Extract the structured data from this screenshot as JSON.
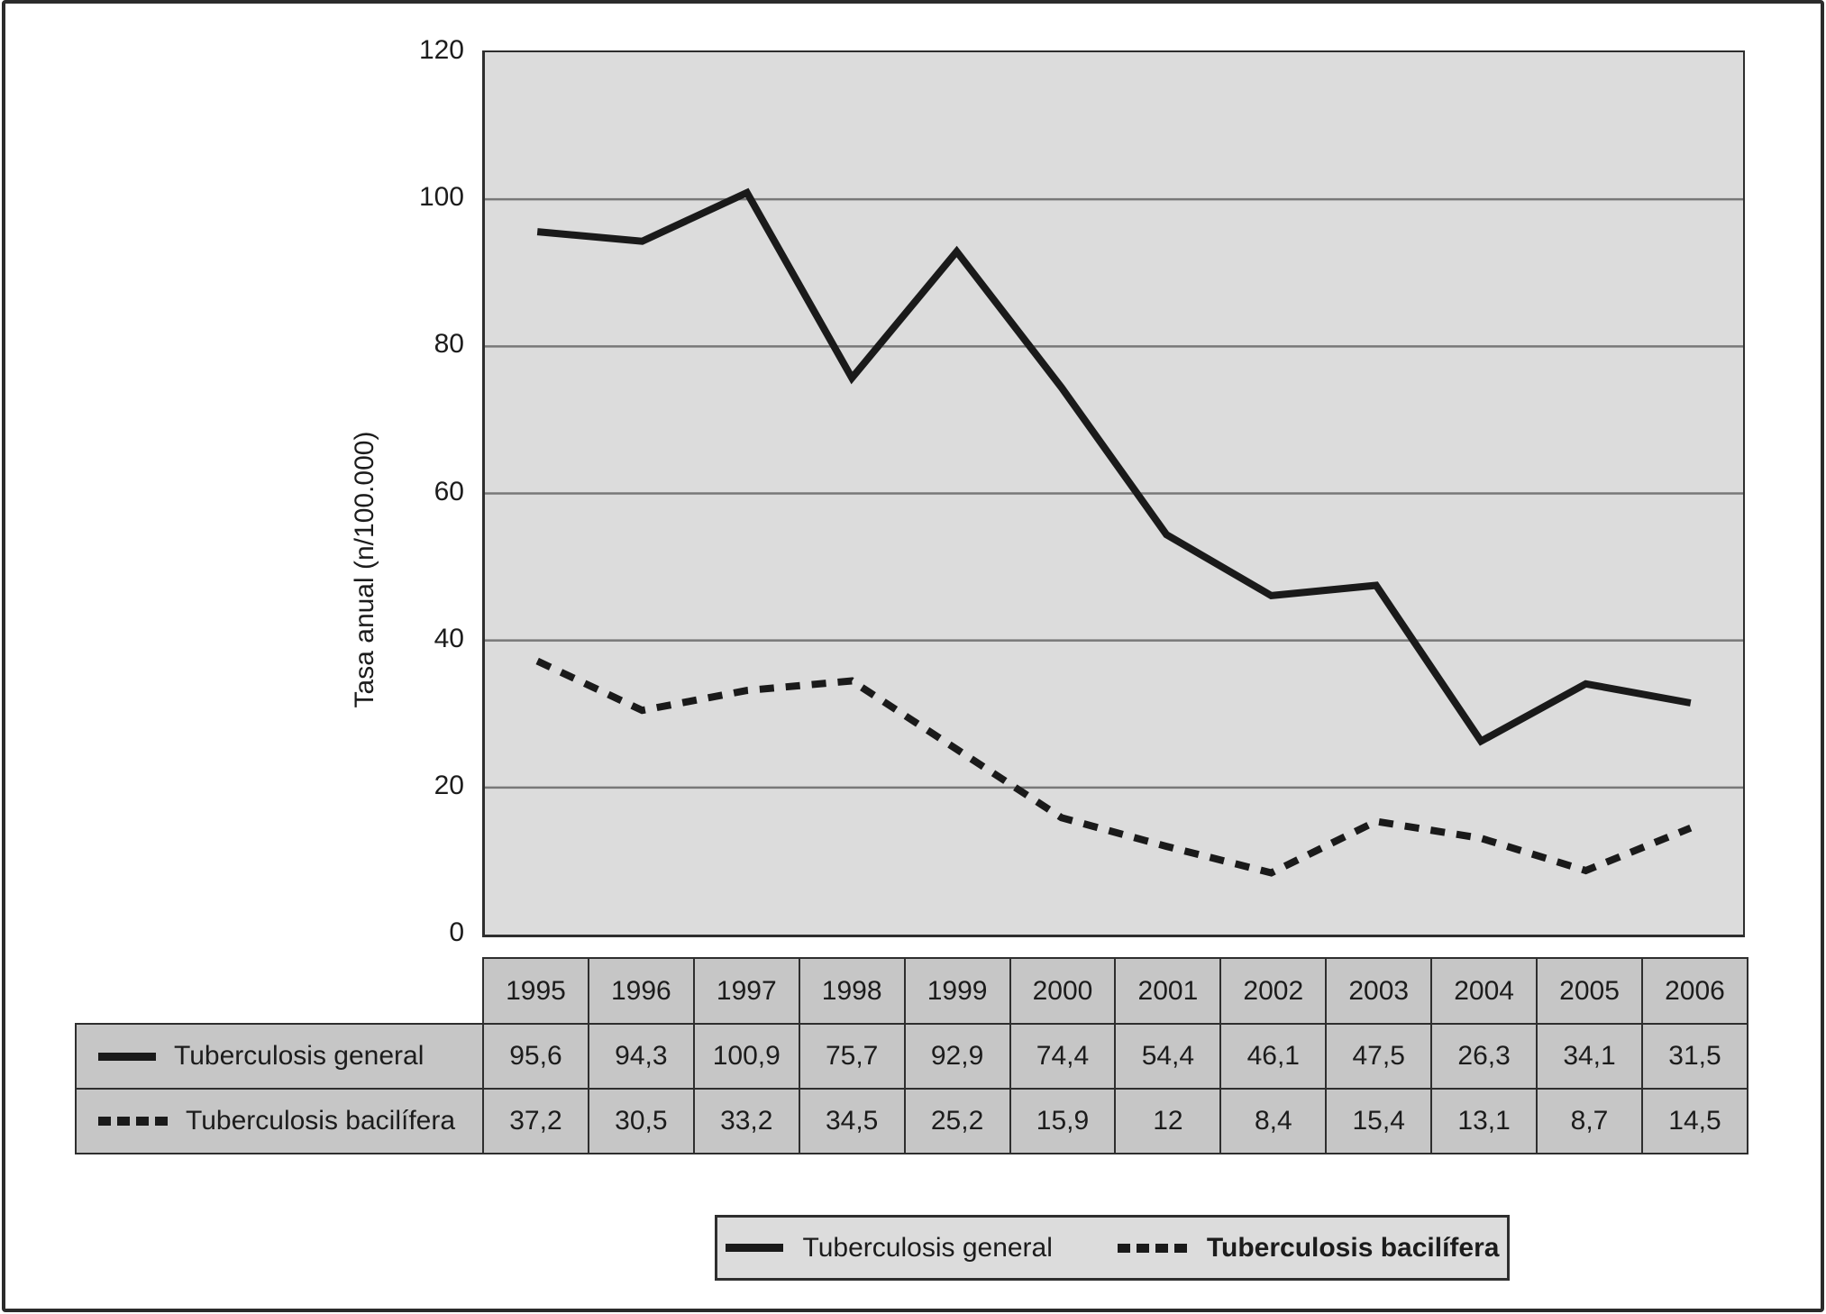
{
  "chart_data": {
    "type": "line",
    "title": "",
    "xlabel": "",
    "ylabel": "Tasa anual (n/100.000)",
    "ylim": [
      0,
      120
    ],
    "y_ticks": [
      0,
      20,
      40,
      60,
      80,
      100,
      120
    ],
    "grid": true,
    "legend_position": "bottom",
    "categories": [
      "1995",
      "1996",
      "1997",
      "1998",
      "1999",
      "2000",
      "2001",
      "2002",
      "2003",
      "2004",
      "2005",
      "2006"
    ],
    "series": [
      {
        "name": "Tuberculosis general",
        "style": "solid",
        "values": [
          95.6,
          94.3,
          100.9,
          75.7,
          92.9,
          74.4,
          54.4,
          46.1,
          47.5,
          26.3,
          34.1,
          31.5
        ]
      },
      {
        "name": "Tuberculosis bacilífera",
        "style": "dashed",
        "values": [
          37.2,
          30.5,
          33.2,
          34.5,
          25.2,
          15.9,
          12,
          8.4,
          15.4,
          13.1,
          8.7,
          14.5
        ]
      }
    ]
  },
  "y_axis": {
    "title": "Tasa anual (n/100.000)",
    "tick_labels": [
      "0",
      "20",
      "40",
      "60",
      "80",
      "100",
      "120"
    ]
  },
  "table": {
    "years": [
      "1995",
      "1996",
      "1997",
      "1998",
      "1999",
      "2000",
      "2001",
      "2002",
      "2003",
      "2004",
      "2005",
      "2006"
    ],
    "rows": [
      {
        "label": "Tuberculosis general",
        "swatch": "solid",
        "values": [
          "95,6",
          "94,3",
          "100,9",
          "75,7",
          "92,9",
          "74,4",
          "54,4",
          "46,1",
          "47,5",
          "26,3",
          "34,1",
          "31,5"
        ]
      },
      {
        "label": "Tuberculosis bacilífera",
        "swatch": "dashed",
        "values": [
          "37,2",
          "30,5",
          "33,2",
          "34,5",
          "25,2",
          "15,9",
          "12",
          "8,4",
          "15,4",
          "13,1",
          "8,7",
          "14,5"
        ]
      }
    ]
  },
  "legend": {
    "items": [
      {
        "label": "Tuberculosis general",
        "swatch": "solid",
        "bold": false
      },
      {
        "label": "Tuberculosis bacilífera",
        "swatch": "dashed",
        "bold": true
      }
    ]
  },
  "colors": {
    "plot_background": "#dcdcdc",
    "table_cell_background": "#c6c6c6",
    "legend_background": "#dcdcdc",
    "line": "#1a1a1a",
    "gridline": "#787878",
    "border": "#2e2e2e",
    "text": "#1c1c1c"
  }
}
